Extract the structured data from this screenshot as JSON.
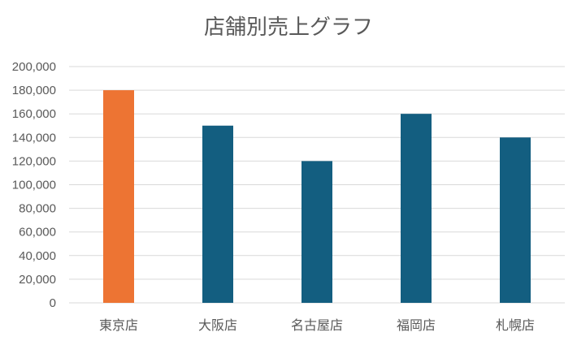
{
  "chart_data": {
    "type": "bar",
    "title": "店舗別売上グラフ",
    "xlabel": "",
    "ylabel": "",
    "categories": [
      "東京店",
      "大阪店",
      "名古屋店",
      "福岡店",
      "札幌店"
    ],
    "values": [
      180000,
      150000,
      120000,
      160000,
      140000
    ],
    "ylim": [
      0,
      200000
    ],
    "yticks": [
      0,
      20000,
      40000,
      60000,
      80000,
      100000,
      120000,
      140000,
      160000,
      180000,
      200000
    ],
    "ytick_labels": [
      "0",
      "20,000",
      "40,000",
      "60,000",
      "80,000",
      "100,000",
      "120,000",
      "140,000",
      "160,000",
      "180,000",
      "200,000"
    ],
    "grid": true,
    "legend": "none",
    "bar_colors": [
      "#ED7433",
      "#135E80",
      "#135E80",
      "#135E80",
      "#135E80"
    ]
  }
}
